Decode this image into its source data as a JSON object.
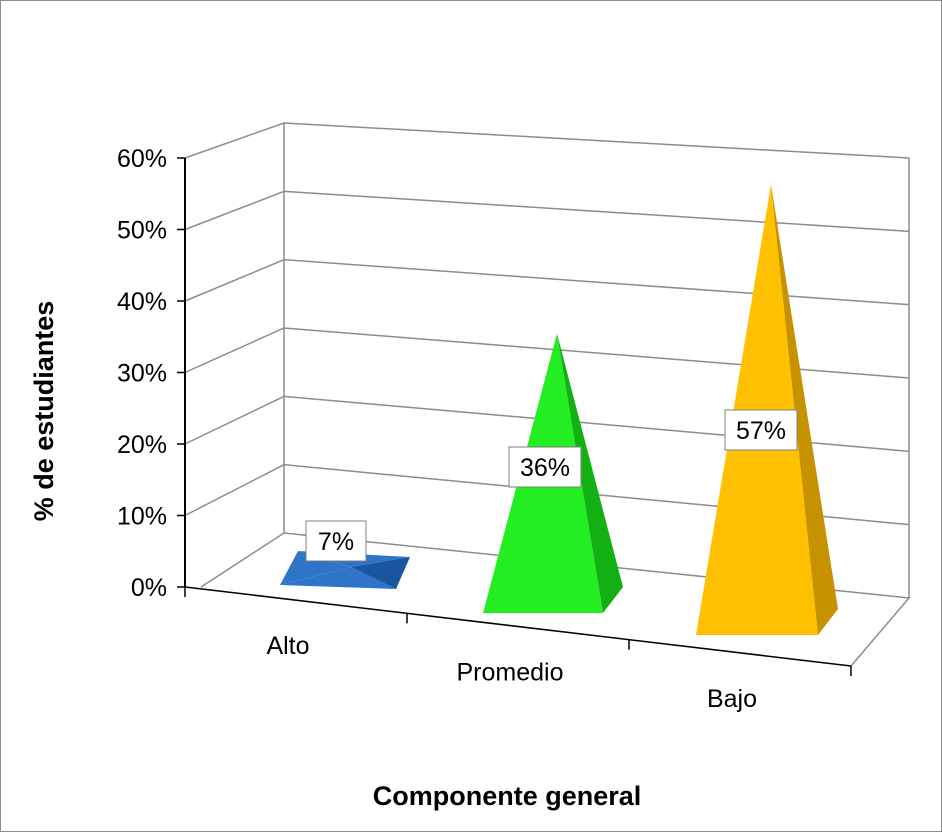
{
  "chart_data": {
    "type": "bar",
    "style": "3d-pyramid",
    "categories": [
      "Alto",
      "Promedio",
      "Bajo"
    ],
    "values": [
      7,
      36,
      57
    ],
    "data_labels": [
      "7%",
      "36%",
      "57%"
    ],
    "colors": [
      "#2e75c9",
      "#22ee22",
      "#ffc000"
    ],
    "dark_colors": [
      "#1a55a0",
      "#12b012",
      "#c79200"
    ],
    "xlabel": "Componente general",
    "ylabel": "% de estudiantes",
    "ylim": [
      0,
      60
    ],
    "yticks": [
      "0%",
      "10%",
      "20%",
      "30%",
      "40%",
      "50%",
      "60%"
    ],
    "grid": true,
    "legend": "none"
  }
}
